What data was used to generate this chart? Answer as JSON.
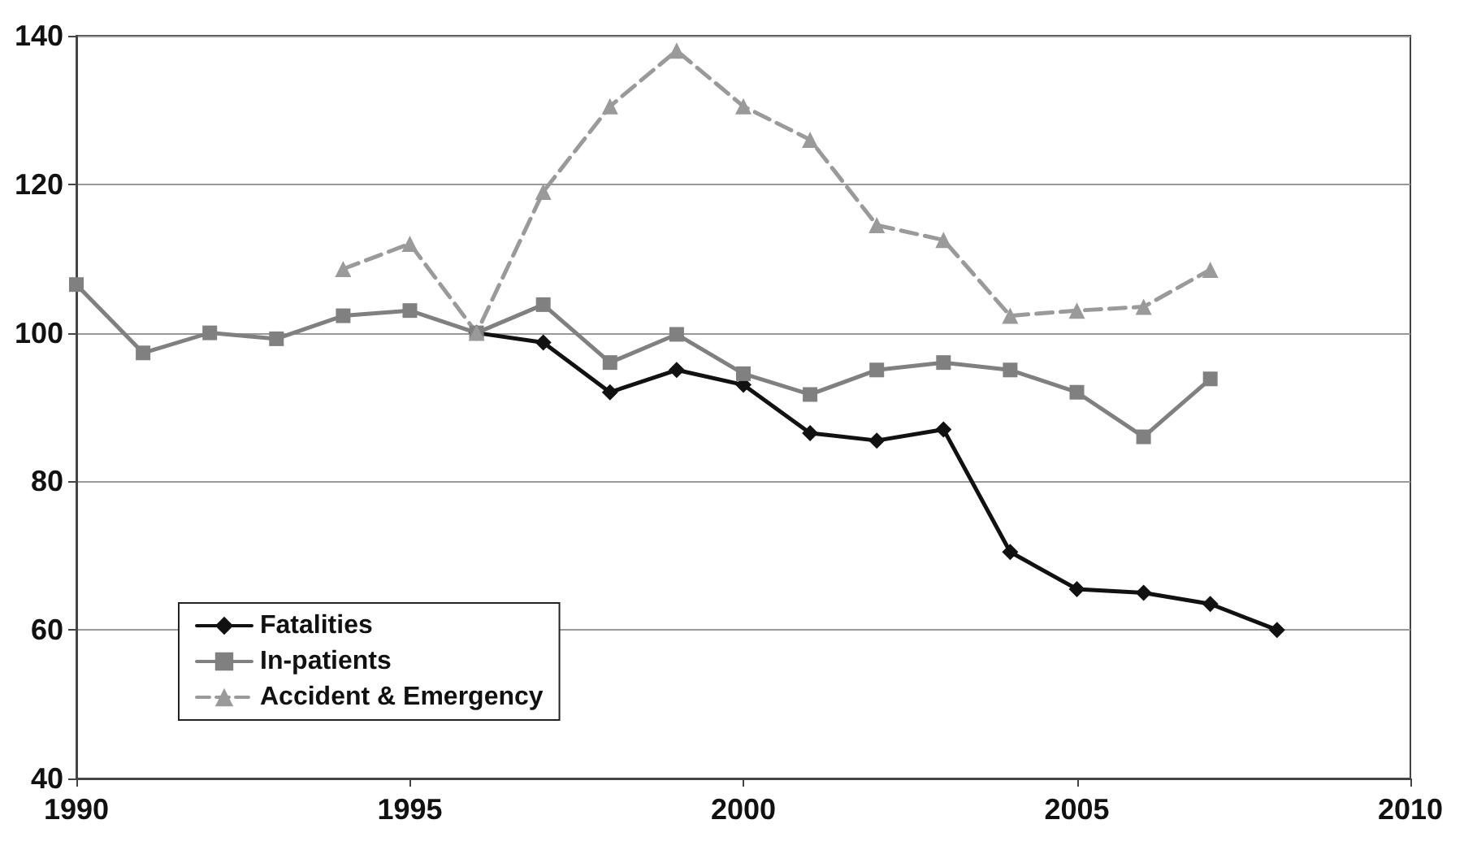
{
  "chart_data": {
    "type": "line",
    "x": [
      1990,
      1991,
      1992,
      1993,
      1994,
      1995,
      1996,
      1997,
      1998,
      1999,
      2000,
      2001,
      2002,
      2003,
      2004,
      2005,
      2006,
      2007,
      2008
    ],
    "series": [
      {
        "name": "Fatalities",
        "color": "#111111",
        "marker": "diamond",
        "line_style": "solid",
        "values": [
          null,
          null,
          null,
          null,
          null,
          null,
          100,
          98.7,
          92,
          95,
          93,
          86.5,
          85.5,
          87,
          70.5,
          65.5,
          65,
          63.5,
          60
        ]
      },
      {
        "name": "In-patients",
        "color": "#808080",
        "marker": "square",
        "line_style": "solid",
        "values": [
          106.5,
          97.3,
          100,
          99.2,
          102.3,
          103,
          100,
          103.8,
          96,
          99.8,
          94.5,
          91.7,
          95,
          96,
          95,
          92,
          86,
          93.8,
          null
        ]
      },
      {
        "name": "Accident & Emergency",
        "color": "#9a9a9a",
        "marker": "triangle",
        "line_style": "dashed",
        "values": [
          null,
          null,
          null,
          null,
          108.6,
          112,
          100,
          119,
          130.5,
          138,
          130.5,
          126,
          114.5,
          112.5,
          102.3,
          103,
          103.5,
          108.5,
          null
        ]
      }
    ],
    "xlim": [
      1990,
      2010
    ],
    "xticks": [
      1990,
      1995,
      2000,
      2005,
      2010
    ],
    "ylim": [
      40,
      140
    ],
    "yticks": [
      40,
      60,
      80,
      100,
      120,
      140
    ],
    "grid": "y",
    "legend": "bottom left"
  }
}
